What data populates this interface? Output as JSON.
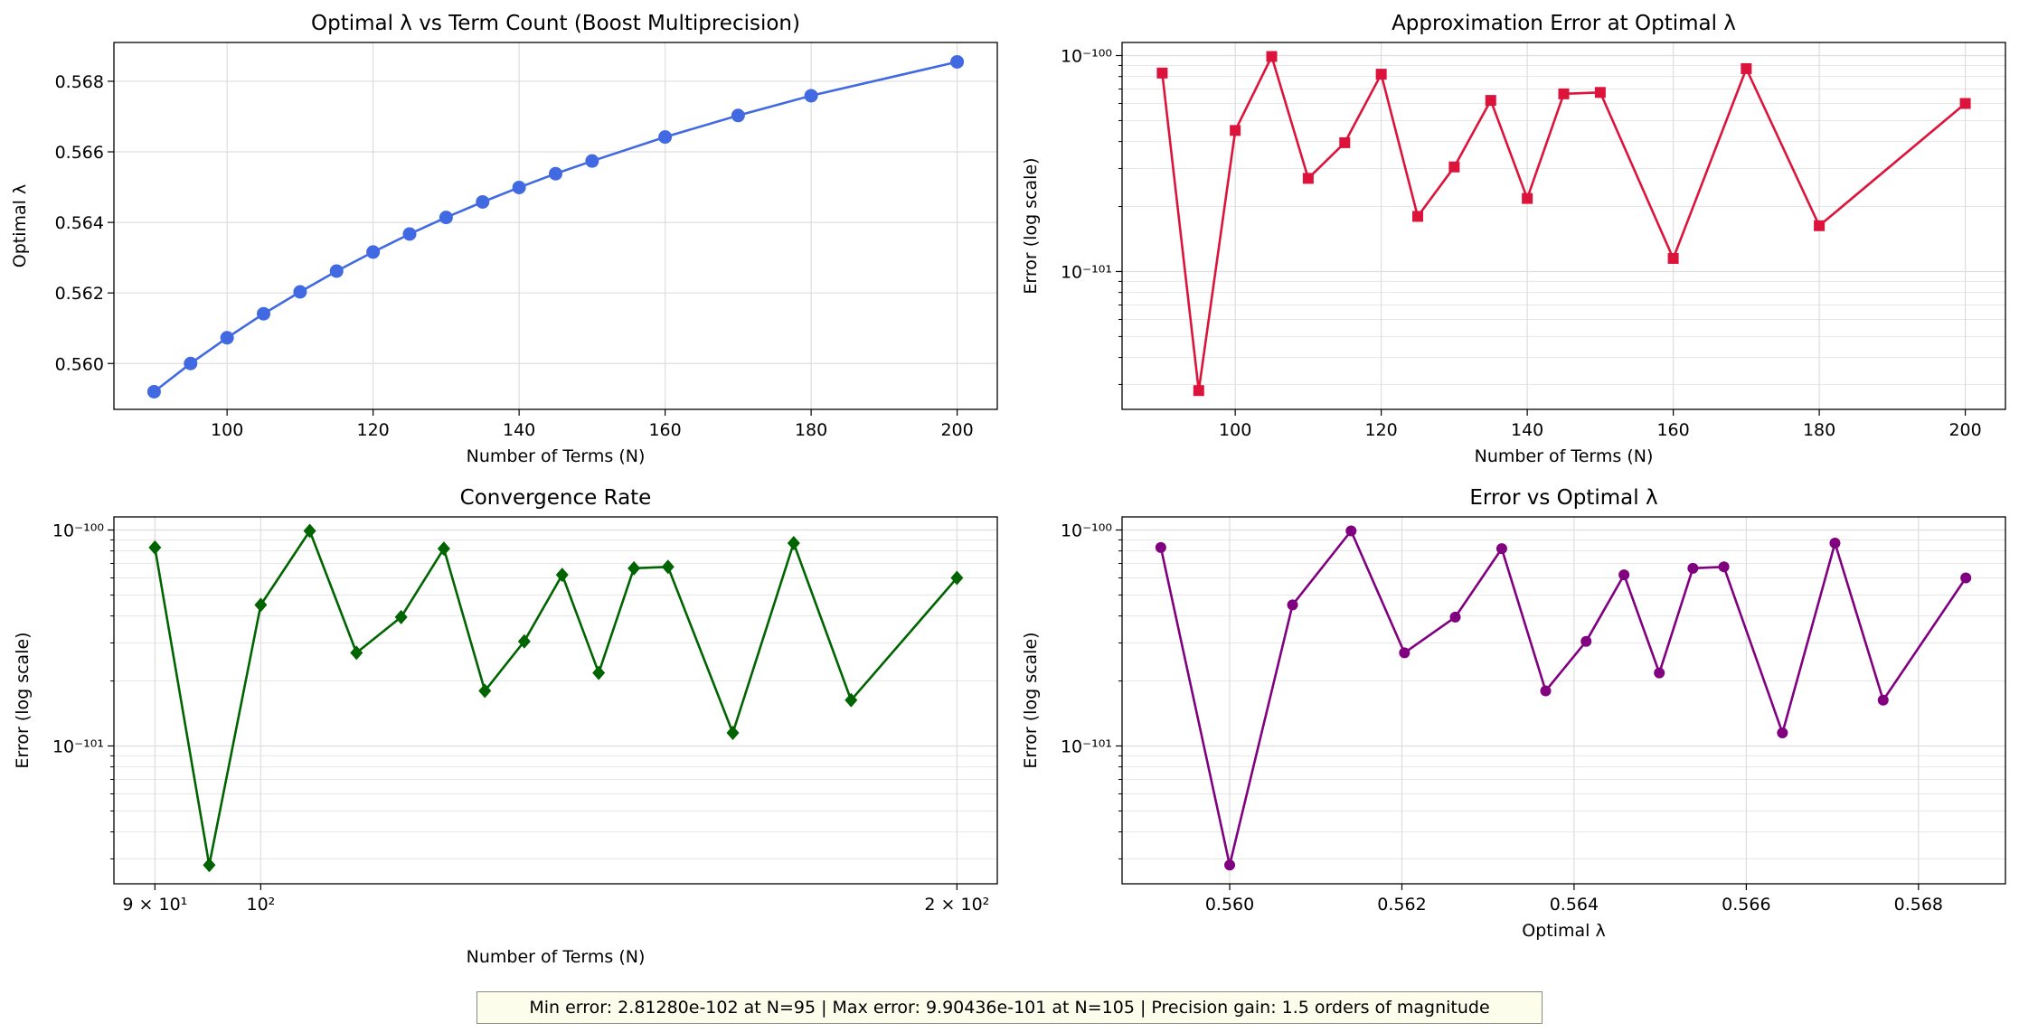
{
  "chart_data": [
    {
      "type": "line",
      "title": "Optimal λ vs Term Count (Boost Multiprecision)",
      "xlabel": "Number of Terms (N)",
      "ylabel": "Optimal λ",
      "xscale": "linear",
      "yscale": "linear",
      "xlim": [
        84.5,
        205.5
      ],
      "ylim": [
        0.5587,
        0.5691
      ],
      "xticks": [
        100,
        120,
        140,
        160,
        180,
        200
      ],
      "xticklabels": [
        "100",
        "120",
        "140",
        "160",
        "180",
        "200"
      ],
      "yticks": [
        0.56,
        0.562,
        0.564,
        0.566,
        0.568
      ],
      "yticklabels": [
        "0.560",
        "0.562",
        "0.564",
        "0.566",
        "0.568"
      ],
      "grid": true,
      "series": [
        {
          "color": "#4169e1",
          "marker": "circle",
          "x": [
            90,
            95,
            100,
            105,
            110,
            115,
            120,
            125,
            130,
            135,
            140,
            145,
            150,
            160,
            170,
            180,
            200
          ],
          "y": [
            0.5592,
            0.56,
            0.56073,
            0.56141,
            0.56203,
            0.56262,
            0.56316,
            0.56367,
            0.56414,
            0.56458,
            0.56499,
            0.56538,
            0.56574,
            0.56642,
            0.56703,
            0.56759,
            0.56855
          ]
        }
      ]
    },
    {
      "type": "line",
      "title": "Approximation Error at Optimal λ",
      "xlabel": "Number of Terms (N)",
      "ylabel": "Error (log scale)",
      "xscale": "linear",
      "yscale": "log",
      "xlim": [
        84.5,
        205.5
      ],
      "ylim": [
        2.3e-102,
        1.15e-100
      ],
      "xticks": [
        100,
        120,
        140,
        160,
        180,
        200
      ],
      "xticklabels": [
        "100",
        "120",
        "140",
        "160",
        "180",
        "200"
      ],
      "yticks": [
        1e-101,
        1e-100
      ],
      "yticklabels": [
        "10⁻¹⁰¹",
        "10⁻¹⁰⁰"
      ],
      "grid": true,
      "series": [
        {
          "color": "#dc143c",
          "marker": "square",
          "x": [
            90,
            95,
            100,
            105,
            110,
            115,
            120,
            125,
            130,
            135,
            140,
            145,
            150,
            160,
            170,
            180,
            200
          ],
          "y": [
            8.3e-101,
            2.81e-102,
            4.5e-101,
            9.9e-101,
            2.7e-101,
            3.95e-101,
            8.2e-101,
            1.8e-101,
            3.05e-101,
            6.2e-101,
            2.18e-101,
            6.65e-101,
            6.75e-101,
            1.15e-101,
            8.7e-101,
            1.63e-101,
            6e-101
          ]
        }
      ]
    },
    {
      "type": "line",
      "title": "Convergence Rate",
      "xlabel": "Number of Terms (N)",
      "ylabel": "Error (log scale)",
      "xscale": "log",
      "yscale": "log",
      "xlim": [
        86.4,
        208.2
      ],
      "ylim": [
        2.3e-102,
        1.15e-100
      ],
      "xticks": [
        90,
        100,
        200
      ],
      "xticklabels": [
        "9 × 10¹",
        "10²",
        "2 × 10²"
      ],
      "yticks": [
        1e-101,
        1e-100
      ],
      "yticklabels": [
        "10⁻¹⁰¹",
        "10⁻¹⁰⁰"
      ],
      "grid": true,
      "series": [
        {
          "color": "#006400",
          "marker": "diamond",
          "x": [
            90,
            95,
            100,
            105,
            110,
            115,
            120,
            125,
            130,
            135,
            140,
            145,
            150,
            160,
            170,
            180,
            200
          ],
          "y": [
            8.3e-101,
            2.81e-102,
            4.5e-101,
            9.9e-101,
            2.7e-101,
            3.95e-101,
            8.2e-101,
            1.8e-101,
            3.05e-101,
            6.2e-101,
            2.18e-101,
            6.65e-101,
            6.75e-101,
            1.15e-101,
            8.7e-101,
            1.63e-101,
            6e-101
          ]
        }
      ]
    },
    {
      "type": "line",
      "title": "Error vs Optimal λ",
      "xlabel": "Optimal λ",
      "ylabel": "Error (log scale)",
      "xscale": "linear",
      "yscale": "log",
      "xlim": [
        0.55875,
        0.56901
      ],
      "ylim": [
        2.3e-102,
        1.15e-100
      ],
      "xticks": [
        0.56,
        0.562,
        0.564,
        0.566,
        0.568
      ],
      "xticklabels": [
        "0.560",
        "0.562",
        "0.564",
        "0.566",
        "0.568"
      ],
      "yticks": [
        1e-101,
        1e-100
      ],
      "yticklabels": [
        "10⁻¹⁰¹",
        "10⁻¹⁰⁰"
      ],
      "grid": true,
      "series": [
        {
          "color": "#800080",
          "marker": "circle",
          "x": [
            0.5592,
            0.56,
            0.56073,
            0.56141,
            0.56203,
            0.56262,
            0.56316,
            0.56367,
            0.56414,
            0.56458,
            0.56499,
            0.56538,
            0.56574,
            0.56642,
            0.56703,
            0.56759,
            0.56855
          ],
          "y": [
            8.3e-101,
            2.81e-102,
            4.5e-101,
            9.9e-101,
            2.7e-101,
            3.95e-101,
            8.2e-101,
            1.8e-101,
            3.05e-101,
            6.2e-101,
            2.18e-101,
            6.65e-101,
            6.75e-101,
            1.15e-101,
            8.7e-101,
            1.63e-101,
            6e-101
          ]
        }
      ]
    }
  ],
  "footer": {
    "text": "Min error: 2.81280e-102 at N=95 | Max error: 9.90436e-101 at N=105 | Precision gain: 1.5 orders of magnitude"
  }
}
